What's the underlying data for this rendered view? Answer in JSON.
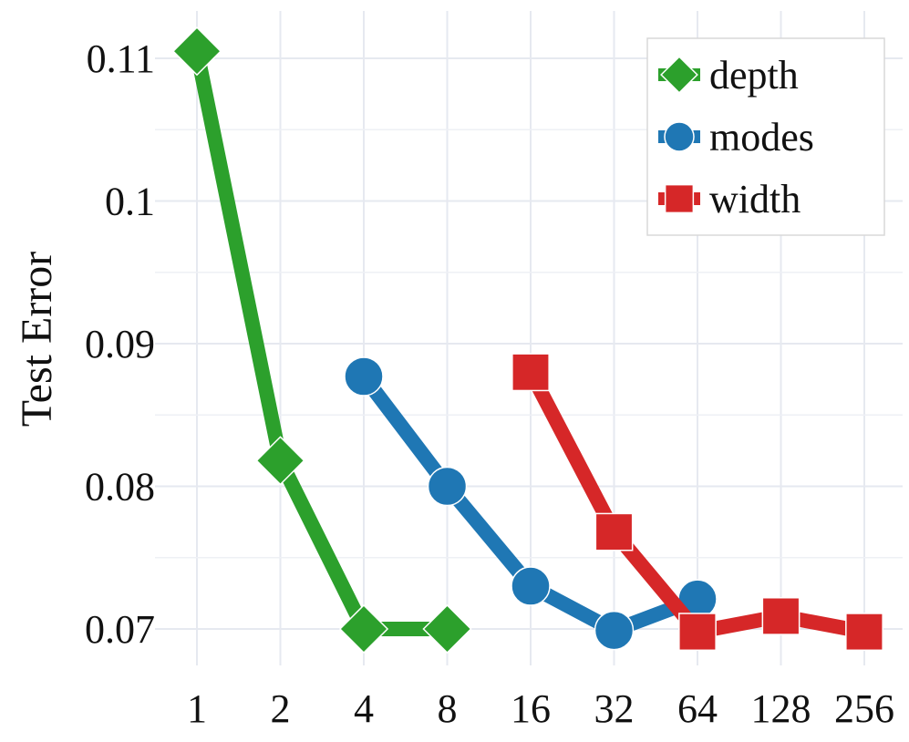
{
  "chart_data": {
    "type": "line",
    "title": "",
    "xlabel": "",
    "ylabel": "Test Error",
    "x_scale": "log2",
    "categories": [
      "1",
      "2",
      "4",
      "8",
      "16",
      "32",
      "64",
      "128",
      "256"
    ],
    "ylim": [
      0.066,
      0.113
    ],
    "yticks": [
      {
        "value": 0.07,
        "label": "0.07"
      },
      {
        "value": 0.08,
        "label": "0.08"
      },
      {
        "value": 0.09,
        "label": "0.09"
      },
      {
        "value": 0.1,
        "label": "0.1"
      },
      {
        "value": 0.11,
        "label": "0.11"
      }
    ],
    "grid": true,
    "legend_position": "top-right",
    "series": [
      {
        "name": "depth",
        "color": "#2ca02c",
        "marker": "diamond",
        "points": [
          [
            1,
            0.1105
          ],
          [
            2,
            0.0818
          ],
          [
            4,
            0.07
          ],
          [
            8,
            0.07
          ]
        ]
      },
      {
        "name": "modes",
        "color": "#1f77b4",
        "marker": "circle",
        "points": [
          [
            4,
            0.0877
          ],
          [
            8,
            0.08
          ],
          [
            16,
            0.073
          ],
          [
            32,
            0.0699
          ],
          [
            64,
            0.0721
          ]
        ]
      },
      {
        "name": "width",
        "color": "#d62728",
        "marker": "square",
        "points": [
          [
            16,
            0.088
          ],
          [
            32,
            0.0768
          ],
          [
            64,
            0.0698
          ],
          [
            128,
            0.0709
          ],
          [
            256,
            0.0698
          ]
        ]
      }
    ]
  }
}
